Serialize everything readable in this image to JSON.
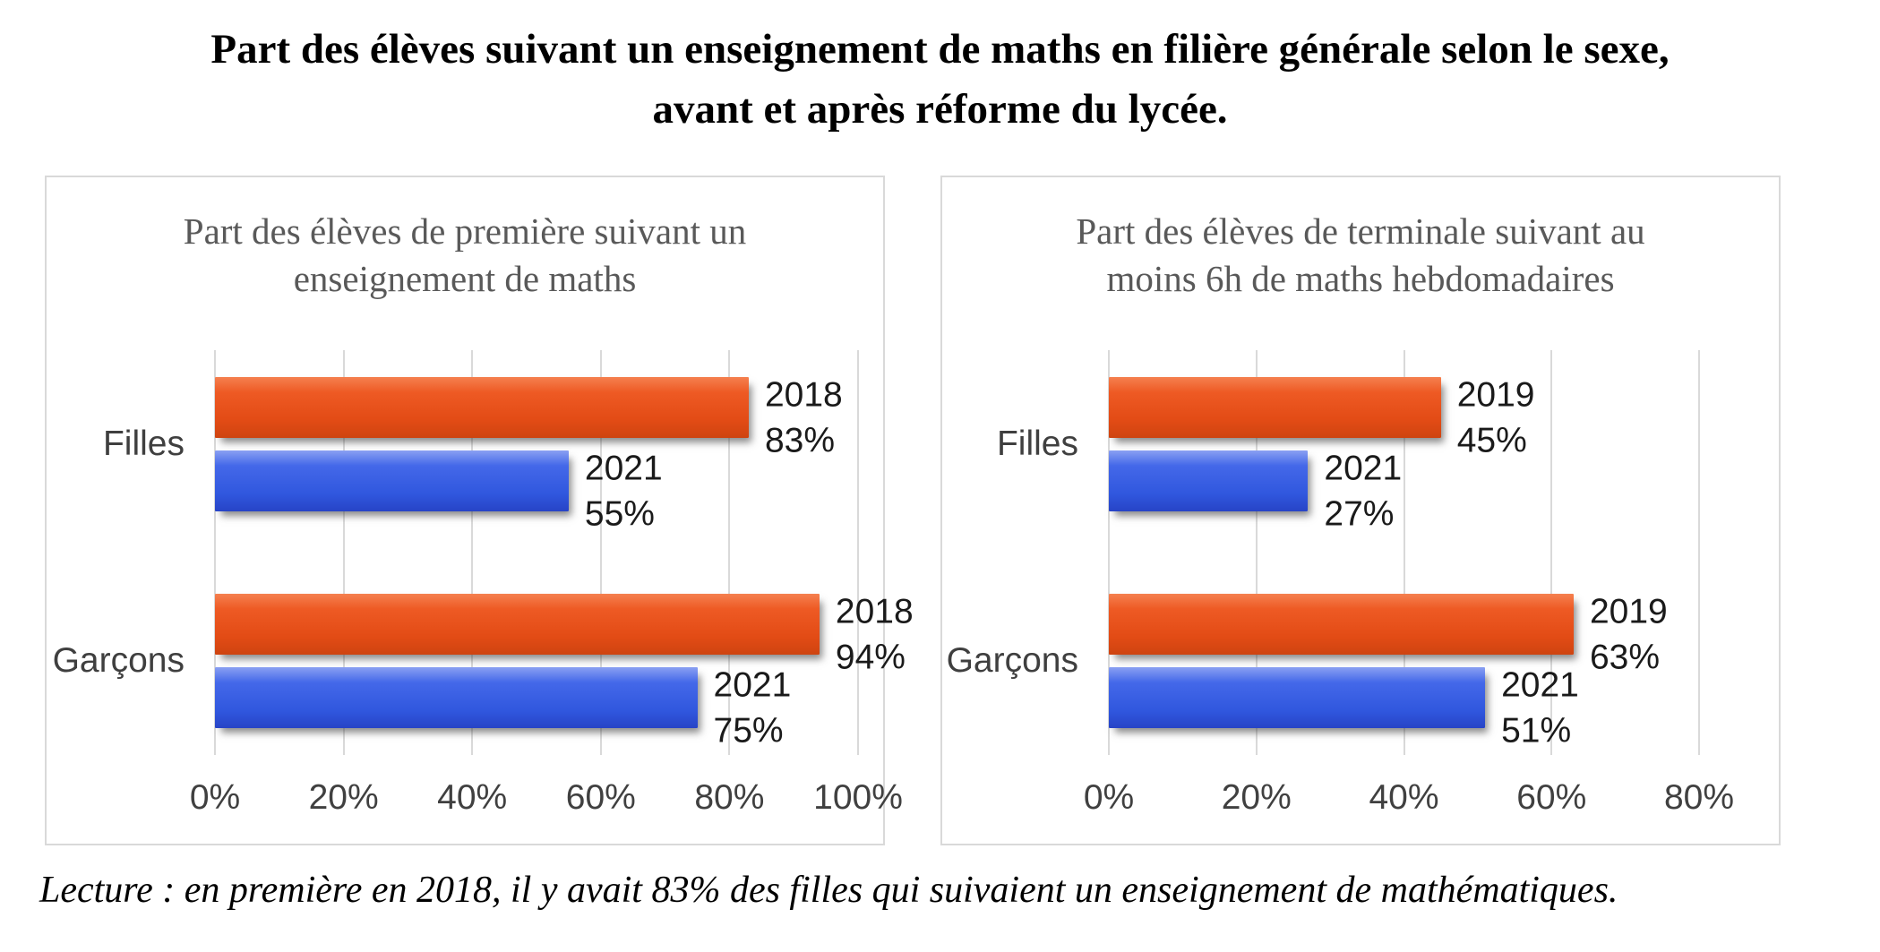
{
  "page": {
    "title_lines": [
      "Part des élèves suivant un enseignement de maths en filière générale selon le sexe,",
      "avant et après réforme du lycée."
    ],
    "note": "Lecture : en première en 2018, il y avait 83% des filles qui suivaient un enseignement de mathématiques."
  },
  "colors": {
    "series_before_reform": "#EE5A24",
    "series_2021": "#3A62E5",
    "gridline": "#D9D9D9",
    "panel_border": "#D9D9D9",
    "axis_text": "#404040",
    "chart_title_text": "#595959"
  },
  "chart_data": [
    {
      "type": "bar",
      "orientation": "horizontal",
      "title": "Part des élèves de première suivant un enseignement de maths",
      "title_lines": [
        "Part des élèves de première suivant un",
        "enseignement de maths"
      ],
      "categories": [
        "Filles",
        "Garçons"
      ],
      "series": [
        {
          "name": "2018",
          "color": "#EE5A24",
          "values": [
            83,
            94
          ]
        },
        {
          "name": "2021",
          "color": "#3A62E5",
          "values": [
            55,
            75
          ]
        }
      ],
      "data_labels": [
        [
          "2018 83%",
          "2018 94%"
        ],
        [
          "2021 55%",
          "2021 75%"
        ]
      ],
      "xlim": [
        0,
        100
      ],
      "tick_values": [
        0,
        20,
        40,
        60,
        80,
        100
      ],
      "tick_labels": [
        "0%",
        "20%",
        "40%",
        "60%",
        "80%",
        "100%"
      ],
      "grid": true,
      "legend": "none"
    },
    {
      "type": "bar",
      "orientation": "horizontal",
      "title": "Part des élèves de terminale suivant au moins 6h de maths hebdomadaires",
      "title_lines": [
        "Part des élèves de terminale suivant au",
        "moins 6h de maths hebdomadaires"
      ],
      "categories": [
        "Filles",
        "Garçons"
      ],
      "series": [
        {
          "name": "2019",
          "color": "#EE5A24",
          "values": [
            45,
            63
          ]
        },
        {
          "name": "2021",
          "color": "#3A62E5",
          "values": [
            27,
            51
          ]
        }
      ],
      "data_labels": [
        [
          "2019 45%",
          "2019 63%"
        ],
        [
          "2021 27%",
          "2021 51%"
        ]
      ],
      "xlim": [
        0,
        80
      ],
      "tick_values": [
        0,
        20,
        40,
        60,
        80
      ],
      "tick_labels": [
        "0%",
        "20%",
        "40%",
        "60%",
        "80%"
      ],
      "grid": true,
      "legend": "none"
    }
  ]
}
